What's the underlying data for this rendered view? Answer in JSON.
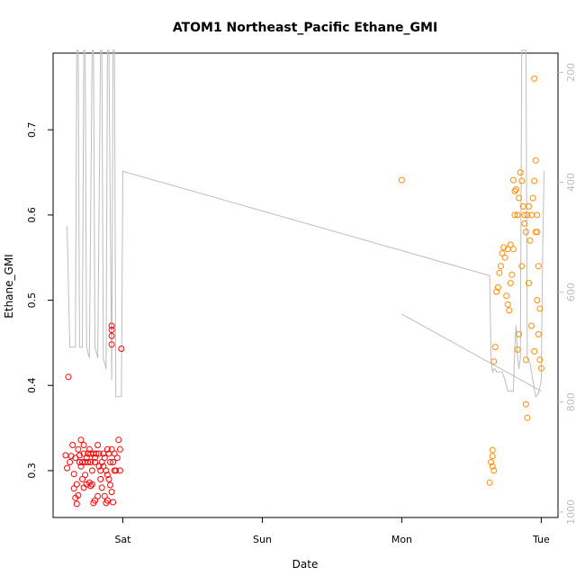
{
  "chart_data": {
    "type": "scatter",
    "title": "ATOM1 Northeast_Pacific Ethane_GMI",
    "xlabel": "Date",
    "ylabel": "Ethane_GMI",
    "x_ticks": [
      {
        "label": "Sat",
        "value": 1.0
      },
      {
        "label": "Sun",
        "value": 2.0
      },
      {
        "label": "Mon",
        "value": 3.0
      },
      {
        "label": "Tue",
        "value": 4.0
      }
    ],
    "xlim": [
      0.5,
      4.12
    ],
    "ylim": [
      0.245,
      0.79
    ],
    "y_ticks": [
      0.3,
      0.4,
      0.5,
      0.6,
      0.7
    ],
    "y2_ticks": [
      200,
      400,
      600,
      800,
      1000
    ],
    "y2lim": [
      1010,
      165
    ],
    "colors": {
      "series1": "#ff0000",
      "series2": "#ff8c00",
      "pressure": "#bdbdbd"
    },
    "series": [
      {
        "color": "#ff0000",
        "points": [
          [
            0.61,
            0.41
          ],
          [
            0.59,
            0.318
          ],
          [
            0.62,
            0.31
          ],
          [
            0.6,
            0.303
          ],
          [
            0.64,
            0.33
          ],
          [
            0.63,
            0.317
          ],
          [
            0.65,
            0.296
          ],
          [
            0.66,
            0.315
          ],
          [
            0.67,
            0.284
          ],
          [
            0.65,
            0.279
          ],
          [
            0.68,
            0.271
          ],
          [
            0.66,
            0.268
          ],
          [
            0.67,
            0.261
          ],
          [
            0.69,
            0.318
          ],
          [
            0.7,
            0.305
          ],
          [
            0.71,
            0.31
          ],
          [
            0.72,
            0.32
          ],
          [
            0.73,
            0.31
          ],
          [
            0.74,
            0.315
          ],
          [
            0.75,
            0.32
          ],
          [
            0.76,
            0.325
          ],
          [
            0.77,
            0.31
          ],
          [
            0.78,
            0.3
          ],
          [
            0.79,
            0.32
          ],
          [
            0.8,
            0.315
          ],
          [
            0.81,
            0.32
          ],
          [
            0.82,
            0.33
          ],
          [
            0.83,
            0.305
          ],
          [
            0.84,
            0.3
          ],
          [
            0.85,
            0.31
          ],
          [
            0.86,
            0.32
          ],
          [
            0.87,
            0.315
          ],
          [
            0.88,
            0.3
          ],
          [
            0.89,
            0.295
          ],
          [
            0.9,
            0.32
          ],
          [
            0.91,
            0.31
          ],
          [
            0.92,
            0.325
          ],
          [
            0.93,
            0.31
          ],
          [
            0.94,
            0.32
          ],
          [
            0.95,
            0.3
          ],
          [
            0.96,
            0.315
          ],
          [
            0.97,
            0.336
          ],
          [
            0.98,
            0.325
          ],
          [
            0.98,
            0.3
          ],
          [
            0.7,
            0.336
          ],
          [
            0.71,
            0.29
          ],
          [
            0.72,
            0.28
          ],
          [
            0.73,
            0.295
          ],
          [
            0.74,
            0.284
          ],
          [
            0.76,
            0.286
          ],
          [
            0.77,
            0.282
          ],
          [
            0.78,
            0.284
          ],
          [
            0.79,
            0.262
          ],
          [
            0.8,
            0.265
          ],
          [
            0.82,
            0.27
          ],
          [
            0.84,
            0.29
          ],
          [
            0.85,
            0.28
          ],
          [
            0.87,
            0.27
          ],
          [
            0.88,
            0.262
          ],
          [
            0.89,
            0.265
          ],
          [
            0.9,
            0.29
          ],
          [
            0.91,
            0.283
          ],
          [
            0.92,
            0.275
          ],
          [
            0.93,
            0.263
          ],
          [
            0.94,
            0.3
          ],
          [
            0.92,
            0.47
          ],
          [
            0.92,
            0.465
          ],
          [
            0.92,
            0.458
          ],
          [
            0.92,
            0.448
          ],
          [
            0.99,
            0.443
          ],
          [
            0.72,
            0.33
          ],
          [
            0.75,
            0.31
          ],
          [
            0.77,
            0.32
          ],
          [
            0.8,
            0.31
          ],
          [
            0.83,
            0.32
          ],
          [
            0.86,
            0.305
          ],
          [
            0.89,
            0.325
          ],
          [
            0.68,
            0.325
          ],
          [
            0.69,
            0.31
          ]
        ]
      },
      {
        "color": "#ff8c00",
        "points": [
          [
            3.0,
            0.641
          ],
          [
            3.63,
            0.286
          ],
          [
            3.64,
            0.31
          ],
          [
            3.65,
            0.305
          ],
          [
            3.66,
            0.3
          ],
          [
            3.65,
            0.317
          ],
          [
            3.65,
            0.324
          ],
          [
            3.66,
            0.428
          ],
          [
            3.67,
            0.445
          ],
          [
            3.68,
            0.51
          ],
          [
            3.69,
            0.515
          ],
          [
            3.7,
            0.532
          ],
          [
            3.71,
            0.54
          ],
          [
            3.72,
            0.555
          ],
          [
            3.73,
            0.562
          ],
          [
            3.74,
            0.55
          ],
          [
            3.75,
            0.505
          ],
          [
            3.76,
            0.495
          ],
          [
            3.77,
            0.488
          ],
          [
            3.78,
            0.52
          ],
          [
            3.79,
            0.53
          ],
          [
            3.8,
            0.56
          ],
          [
            3.81,
            0.6
          ],
          [
            3.82,
            0.63
          ],
          [
            3.83,
            0.6
          ],
          [
            3.84,
            0.62
          ],
          [
            3.85,
            0.65
          ],
          [
            3.86,
            0.64
          ],
          [
            3.87,
            0.61
          ],
          [
            3.88,
            0.59
          ],
          [
            3.89,
            0.58
          ],
          [
            3.9,
            0.6
          ],
          [
            3.91,
            0.61
          ],
          [
            3.92,
            0.57
          ],
          [
            3.93,
            0.6
          ],
          [
            3.94,
            0.62
          ],
          [
            3.95,
            0.64
          ],
          [
            3.96,
            0.58
          ],
          [
            3.97,
            0.5
          ],
          [
            3.98,
            0.46
          ],
          [
            3.99,
            0.43
          ],
          [
            4.0,
            0.42
          ],
          [
            3.89,
            0.378
          ],
          [
            3.9,
            0.362
          ],
          [
            3.95,
            0.76
          ],
          [
            3.96,
            0.664
          ],
          [
            3.97,
            0.6
          ],
          [
            3.98,
            0.54
          ],
          [
            3.8,
            0.641
          ],
          [
            3.81,
            0.628
          ],
          [
            3.83,
            0.442
          ],
          [
            3.84,
            0.46
          ],
          [
            3.86,
            0.54
          ],
          [
            3.88,
            0.6
          ],
          [
            3.89,
            0.43
          ],
          [
            3.91,
            0.52
          ],
          [
            3.93,
            0.47
          ],
          [
            3.95,
            0.44
          ],
          [
            3.97,
            0.58
          ],
          [
            3.99,
            0.49
          ],
          [
            3.76,
            0.56
          ],
          [
            3.78,
            0.565
          ]
        ]
      }
    ],
    "pressure_line": {
      "color": "#bdbdbd",
      "points": [
        [
          0.6,
          480
        ],
        [
          0.62,
          700
        ],
        [
          0.64,
          700
        ],
        [
          0.66,
          700
        ],
        [
          0.67,
          160
        ],
        [
          0.68,
          160
        ],
        [
          0.69,
          700
        ],
        [
          0.71,
          700
        ],
        [
          0.72,
          160
        ],
        [
          0.73,
          160
        ],
        [
          0.74,
          700
        ],
        [
          0.76,
          720
        ],
        [
          0.78,
          160
        ],
        [
          0.79,
          160
        ],
        [
          0.8,
          700
        ],
        [
          0.82,
          720
        ],
        [
          0.84,
          160
        ],
        [
          0.85,
          160
        ],
        [
          0.86,
          720
        ],
        [
          0.88,
          740
        ],
        [
          0.89,
          160
        ],
        [
          0.9,
          160
        ],
        [
          0.92,
          760
        ],
        [
          0.93,
          160
        ],
        [
          0.94,
          160
        ],
        [
          0.95,
          790
        ],
        [
          0.97,
          790
        ],
        [
          0.98,
          790
        ],
        [
          0.99,
          790
        ],
        [
          1.0,
          380
        ],
        [
          3.63,
          570
        ],
        [
          3.64,
          720
        ],
        [
          3.65,
          745
        ],
        [
          3.66,
          740
        ],
        [
          3.67,
          740
        ],
        [
          3.68,
          745
        ],
        [
          3.7,
          745
        ],
        [
          3.72,
          745
        ],
        [
          3.74,
          760
        ],
        [
          3.76,
          780
        ],
        [
          3.78,
          780
        ],
        [
          3.8,
          780
        ],
        [
          3.81,
          700
        ],
        [
          3.82,
          660
        ],
        [
          3.83,
          720
        ],
        [
          3.84,
          740
        ],
        [
          3.85,
          720
        ],
        [
          3.86,
          160
        ],
        [
          3.87,
          160
        ],
        [
          3.88,
          160
        ],
        [
          3.89,
          160
        ],
        [
          3.9,
          720
        ],
        [
          3.92,
          730
        ],
        [
          3.94,
          760
        ],
        [
          3.96,
          790
        ],
        [
          3.98,
          785
        ],
        [
          4.0,
          760
        ],
        [
          4.01,
          520
        ],
        [
          4.02,
          380
        ]
      ]
    }
  }
}
